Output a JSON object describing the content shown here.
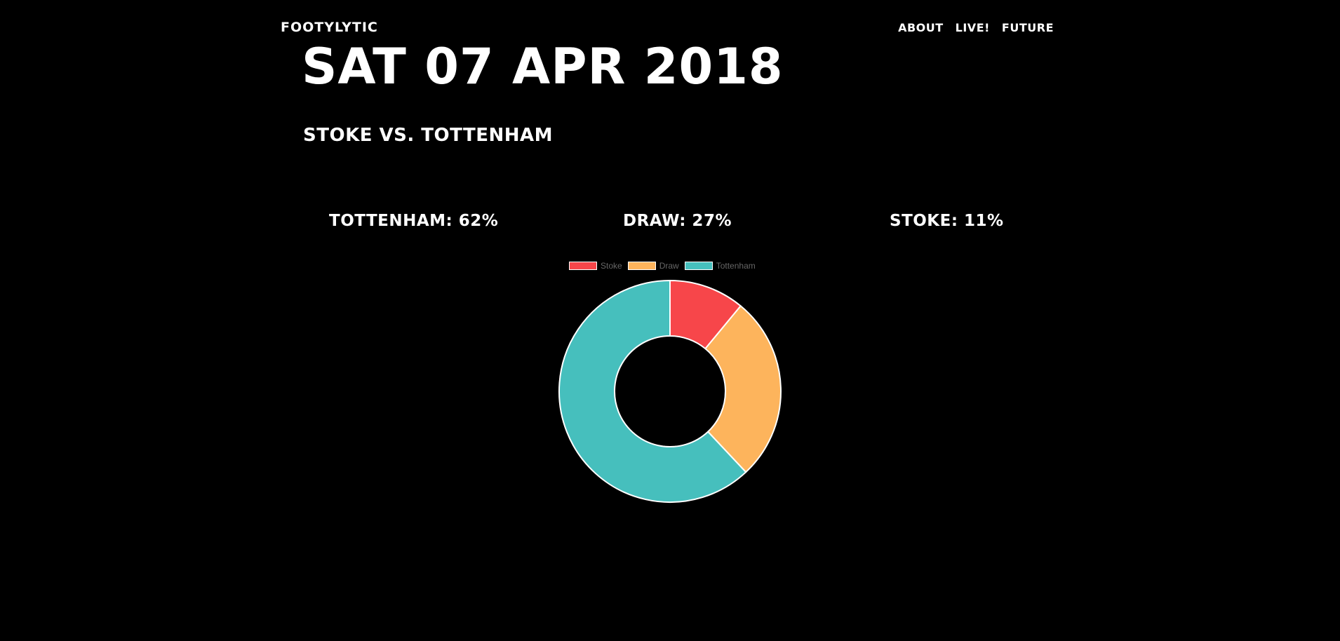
{
  "header": {
    "brand": "FOOTYLYTIC",
    "nav": [
      "ABOUT",
      "LIVE!",
      "FUTURE"
    ]
  },
  "match": {
    "date": "SAT 07 APR 2018",
    "title": "STOKE VS. TOTTENHAM"
  },
  "probabilities": {
    "tottenham": "TOTTENHAM: 62%",
    "draw": "DRAW: 27%",
    "stoke": "STOKE: 11%"
  },
  "chart_data": {
    "type": "pie",
    "variant": "doughnut",
    "categories": [
      "Stoke",
      "Draw",
      "Tottenham"
    ],
    "values": [
      11,
      27,
      62
    ],
    "colors": [
      "#F7464A",
      "#FDB45C",
      "#46BFBD"
    ],
    "legend": "top",
    "title": ""
  }
}
